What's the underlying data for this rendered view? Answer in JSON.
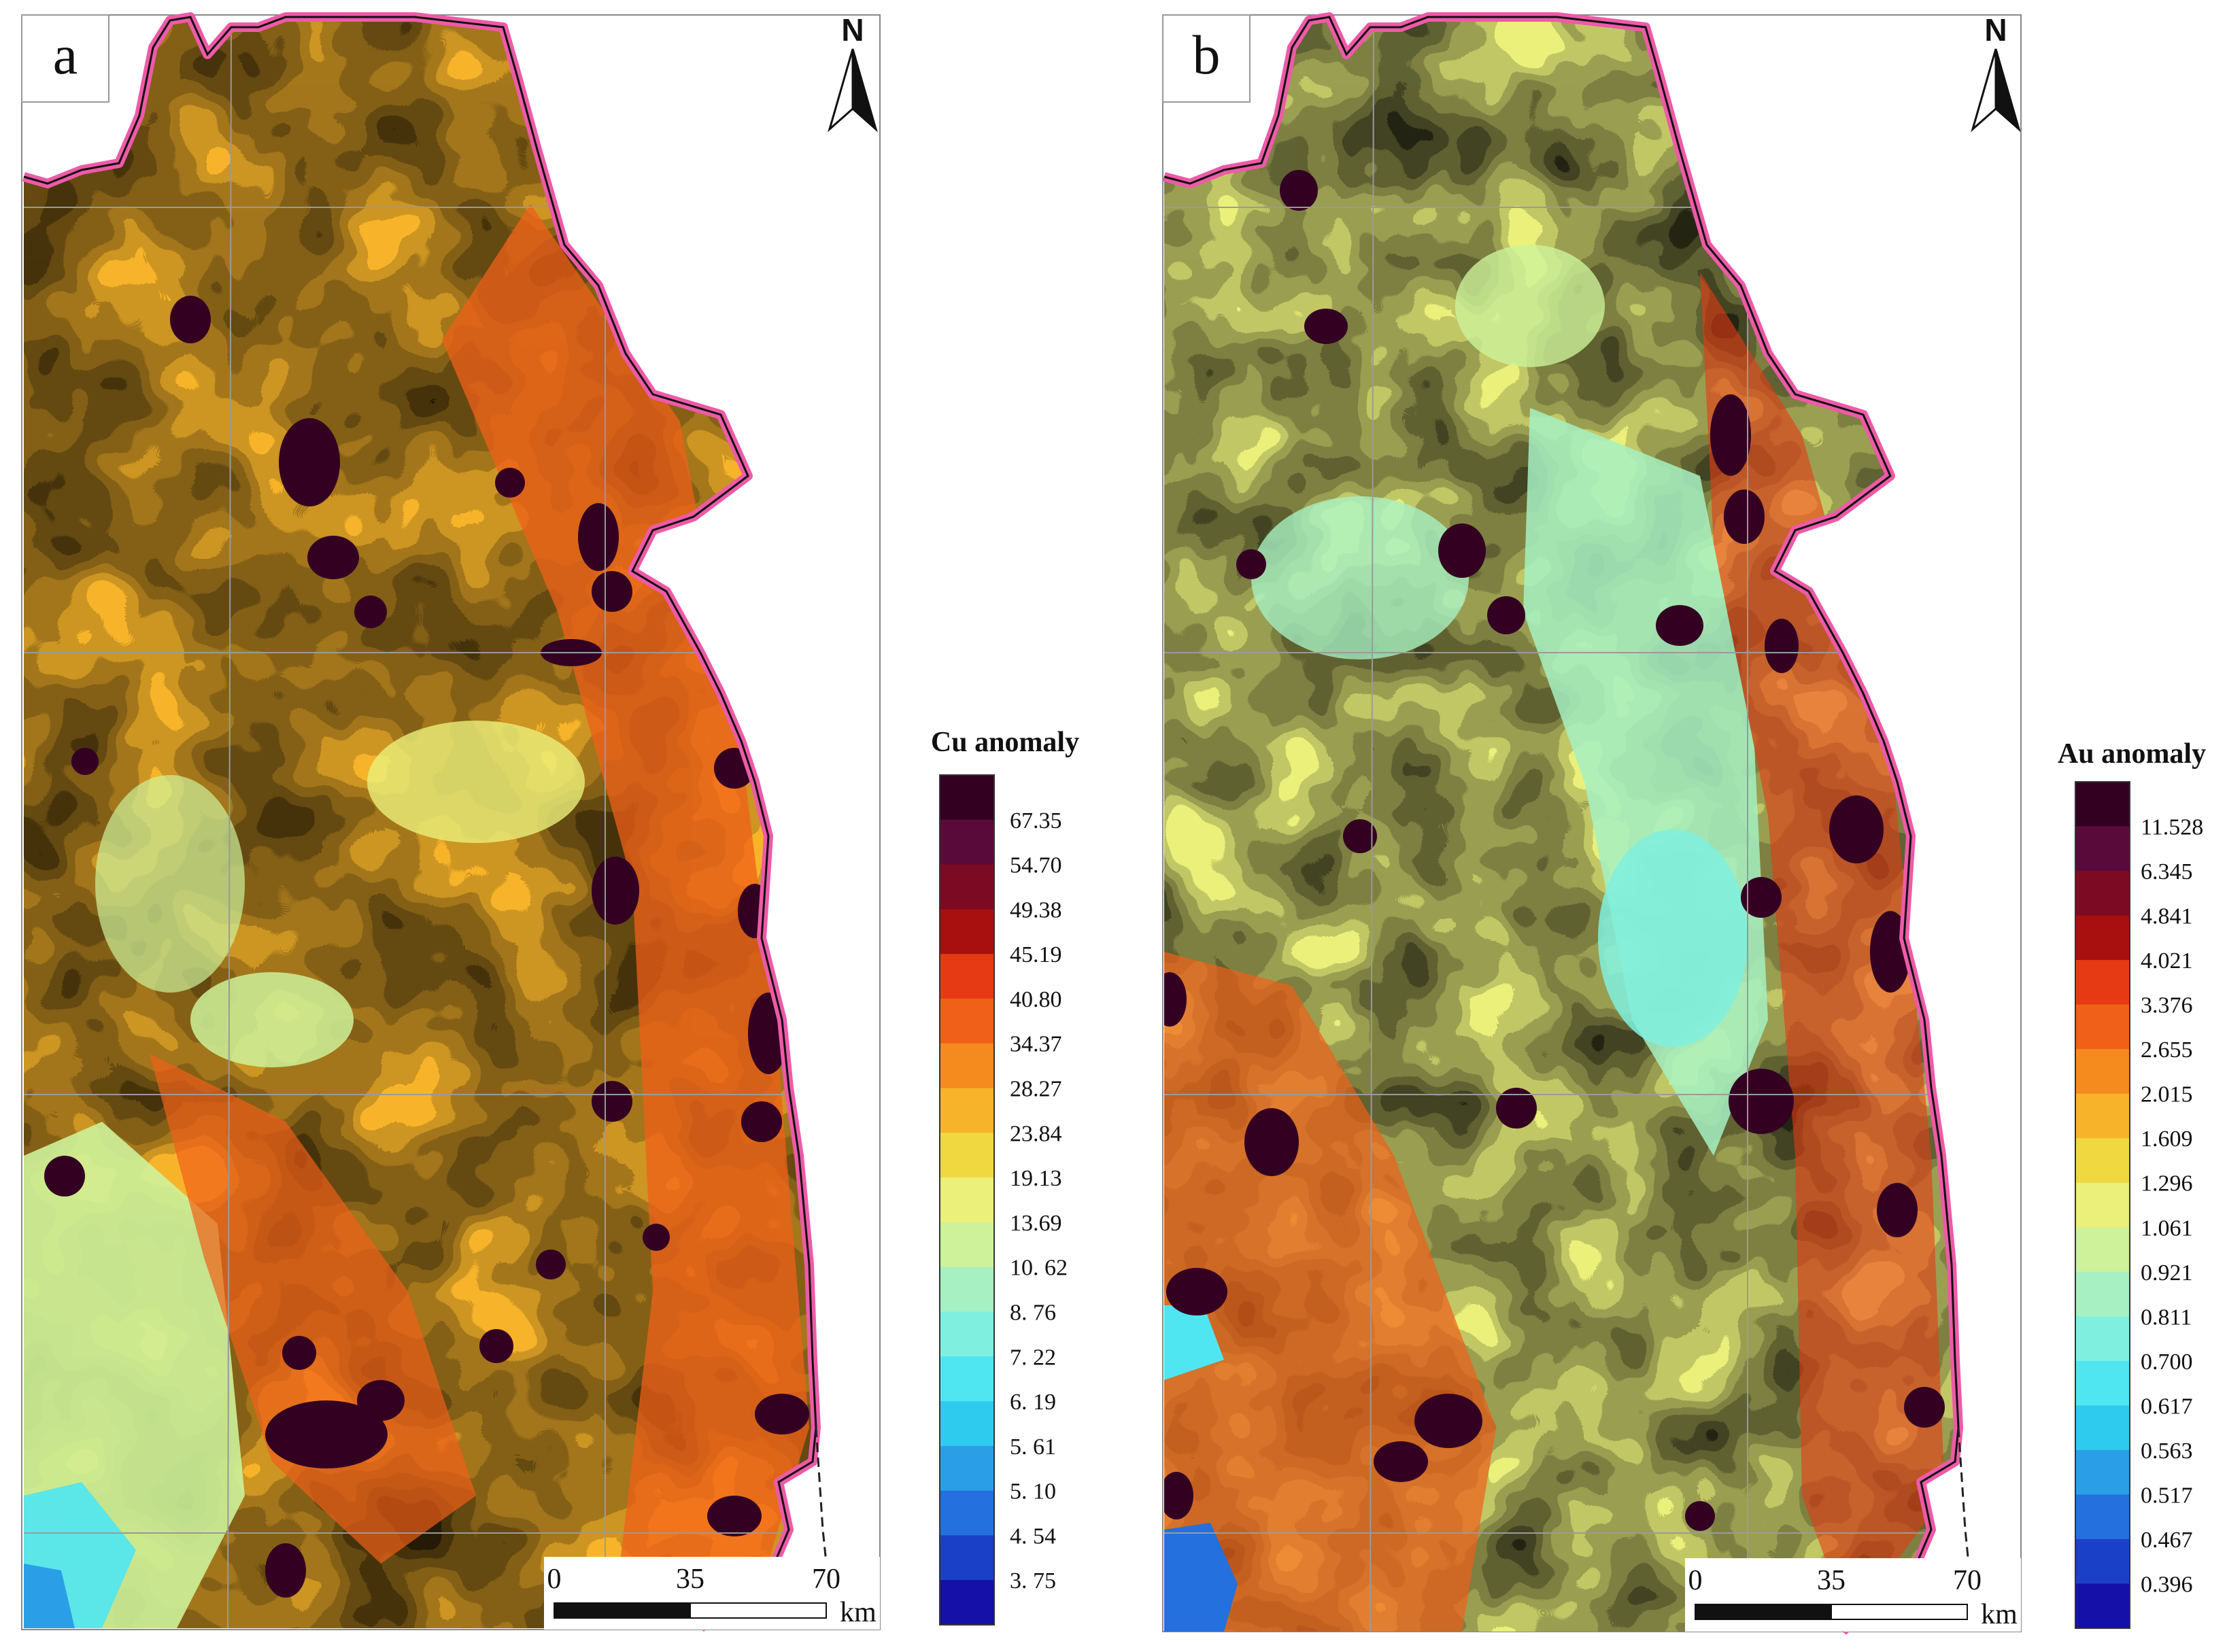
{
  "panels": [
    {
      "label": "a",
      "legend_title": "Cu anomaly",
      "legend_values": [
        "67.35",
        "54.70",
        "49.38",
        "45.19",
        "40.80",
        "34.37",
        "28.27",
        "23.84",
        "19.13",
        "13.69",
        "10. 62",
        "8. 76",
        "7. 22",
        "6. 19",
        "5. 61",
        "5. 10",
        "4. 54",
        "3. 75"
      ],
      "north_label": "N",
      "scale": {
        "ticks": [
          "0",
          "35",
          "70"
        ],
        "unit": "km"
      }
    },
    {
      "label": "b",
      "legend_title": "Au anomaly",
      "legend_values": [
        "11.528",
        "6.345",
        "4.841",
        "4.021",
        "3.376",
        "2.655",
        "2.015",
        "1.609",
        "1.296",
        "1.061",
        "0.921",
        "0.811",
        "0.700",
        "0.617",
        "0.563",
        "0.517",
        "0.467",
        "0.396"
      ],
      "north_label": "N",
      "scale": {
        "ticks": [
          "0",
          "35",
          "70"
        ],
        "unit": "km"
      }
    }
  ],
  "colors": {
    "ramp": [
      "#330022",
      "#5a0a3a",
      "#7c0a22",
      "#a80f0f",
      "#e63a14",
      "#f06018",
      "#f58a1e",
      "#f7b42a",
      "#efd840",
      "#eaf07a",
      "#cdf29a",
      "#a6f0c2",
      "#7ff0df",
      "#4fe6f2",
      "#2fcbee",
      "#2a9fe8",
      "#2370de",
      "#1a40c8",
      "#1410a8"
    ],
    "boundary": "#ee5aa8",
    "grid": "#9a9a9a"
  }
}
